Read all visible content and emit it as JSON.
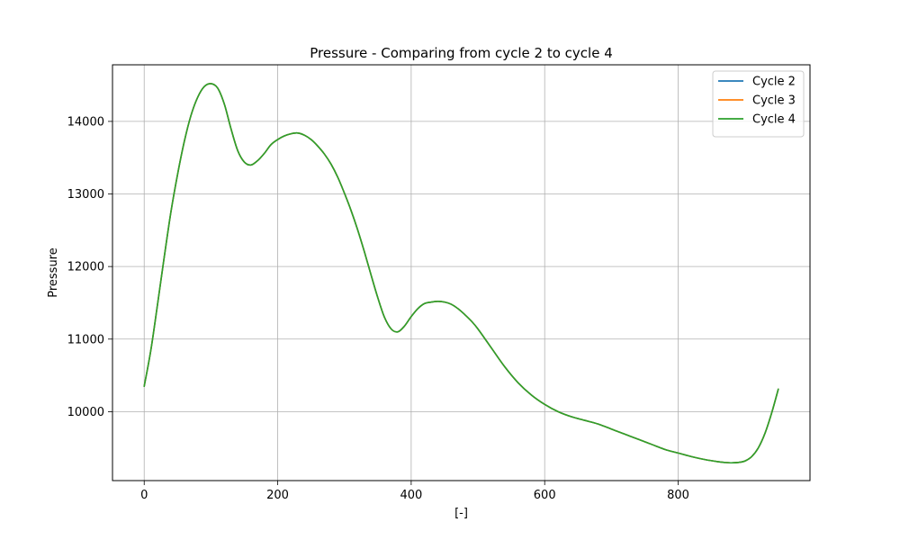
{
  "chart_data": {
    "type": "line",
    "title": "Pressure - Comparing from cycle 2 to cycle 4",
    "xlabel": "[-]",
    "ylabel": "Pressure",
    "xlim": [
      -47.5,
      997.5
    ],
    "ylim": [
      9050,
      14780
    ],
    "grid": true,
    "legend_position": "top-right",
    "x_ticks": [
      0,
      200,
      400,
      600,
      800
    ],
    "y_ticks": [
      10000,
      11000,
      12000,
      13000,
      14000
    ],
    "series": [
      {
        "name": "Cycle 2",
        "color": "#1f77b4",
        "x": [
          0,
          10,
          20,
          30,
          40,
          50,
          60,
          70,
          80,
          90,
          100,
          110,
          120,
          130,
          140,
          150,
          160,
          170,
          180,
          190,
          200,
          210,
          220,
          230,
          240,
          250,
          260,
          270,
          280,
          290,
          300,
          310,
          320,
          330,
          340,
          350,
          360,
          370,
          380,
          390,
          400,
          410,
          420,
          430,
          440,
          450,
          460,
          470,
          480,
          490,
          500,
          520,
          540,
          560,
          580,
          600,
          620,
          640,
          660,
          680,
          700,
          720,
          740,
          760,
          780,
          800,
          820,
          840,
          860,
          870,
          880,
          890,
          900,
          910,
          920,
          930,
          940,
          950
        ],
        "y": [
          10350,
          10850,
          11480,
          12130,
          12750,
          13270,
          13720,
          14080,
          14330,
          14480,
          14520,
          14460,
          14240,
          13900,
          13600,
          13440,
          13400,
          13460,
          13560,
          13680,
          13750,
          13800,
          13830,
          13840,
          13810,
          13750,
          13660,
          13550,
          13410,
          13230,
          13010,
          12770,
          12500,
          12200,
          11880,
          11570,
          11300,
          11140,
          11100,
          11180,
          11310,
          11420,
          11490,
          11510,
          11520,
          11510,
          11480,
          11420,
          11340,
          11250,
          11140,
          10880,
          10620,
          10400,
          10230,
          10100,
          10000,
          9930,
          9880,
          9830,
          9760,
          9690,
          9620,
          9550,
          9480,
          9430,
          9380,
          9340,
          9310,
          9300,
          9295,
          9300,
          9320,
          9380,
          9500,
          9700,
          9980,
          10310
        ]
      },
      {
        "name": "Cycle 3",
        "color": "#ff7f0e",
        "x": [
          0,
          10,
          20,
          30,
          40,
          50,
          60,
          70,
          80,
          90,
          100,
          110,
          120,
          130,
          140,
          150,
          160,
          170,
          180,
          190,
          200,
          210,
          220,
          230,
          240,
          250,
          260,
          270,
          280,
          290,
          300,
          310,
          320,
          330,
          340,
          350,
          360,
          370,
          380,
          390,
          400,
          410,
          420,
          430,
          440,
          450,
          460,
          470,
          480,
          490,
          500,
          520,
          540,
          560,
          580,
          600,
          620,
          640,
          660,
          680,
          700,
          720,
          740,
          760,
          780,
          800,
          820,
          840,
          860,
          870,
          880,
          890,
          900,
          910,
          920,
          930,
          940,
          950
        ],
        "y": [
          10350,
          10850,
          11480,
          12130,
          12750,
          13270,
          13720,
          14080,
          14330,
          14480,
          14520,
          14460,
          14240,
          13900,
          13600,
          13440,
          13400,
          13460,
          13560,
          13680,
          13750,
          13800,
          13830,
          13840,
          13810,
          13750,
          13660,
          13550,
          13410,
          13230,
          13010,
          12770,
          12500,
          12200,
          11880,
          11570,
          11300,
          11140,
          11100,
          11180,
          11310,
          11420,
          11490,
          11510,
          11520,
          11510,
          11480,
          11420,
          11340,
          11250,
          11140,
          10880,
          10620,
          10400,
          10230,
          10100,
          10000,
          9930,
          9880,
          9830,
          9760,
          9690,
          9620,
          9550,
          9480,
          9430,
          9380,
          9340,
          9310,
          9300,
          9295,
          9300,
          9320,
          9380,
          9500,
          9700,
          9980,
          10310
        ]
      },
      {
        "name": "Cycle 4",
        "color": "#2ca02c",
        "x": [
          0,
          10,
          20,
          30,
          40,
          50,
          60,
          70,
          80,
          90,
          100,
          110,
          120,
          130,
          140,
          150,
          160,
          170,
          180,
          190,
          200,
          210,
          220,
          230,
          240,
          250,
          260,
          270,
          280,
          290,
          300,
          310,
          320,
          330,
          340,
          350,
          360,
          370,
          380,
          390,
          400,
          410,
          420,
          430,
          440,
          450,
          460,
          470,
          480,
          490,
          500,
          520,
          540,
          560,
          580,
          600,
          620,
          640,
          660,
          680,
          700,
          720,
          740,
          760,
          780,
          800,
          820,
          840,
          860,
          870,
          880,
          890,
          900,
          910,
          920,
          930,
          940,
          950
        ],
        "y": [
          10350,
          10850,
          11480,
          12130,
          12750,
          13270,
          13720,
          14080,
          14330,
          14480,
          14520,
          14460,
          14240,
          13900,
          13600,
          13440,
          13400,
          13460,
          13560,
          13680,
          13750,
          13800,
          13830,
          13840,
          13810,
          13750,
          13660,
          13550,
          13410,
          13230,
          13010,
          12770,
          12500,
          12200,
          11880,
          11570,
          11300,
          11140,
          11100,
          11180,
          11310,
          11420,
          11490,
          11510,
          11520,
          11510,
          11480,
          11420,
          11340,
          11250,
          11140,
          10880,
          10620,
          10400,
          10230,
          10100,
          10000,
          9930,
          9880,
          9830,
          9760,
          9690,
          9620,
          9550,
          9480,
          9430,
          9380,
          9340,
          9310,
          9300,
          9295,
          9300,
          9320,
          9380,
          9500,
          9700,
          9980,
          10310
        ]
      }
    ]
  }
}
